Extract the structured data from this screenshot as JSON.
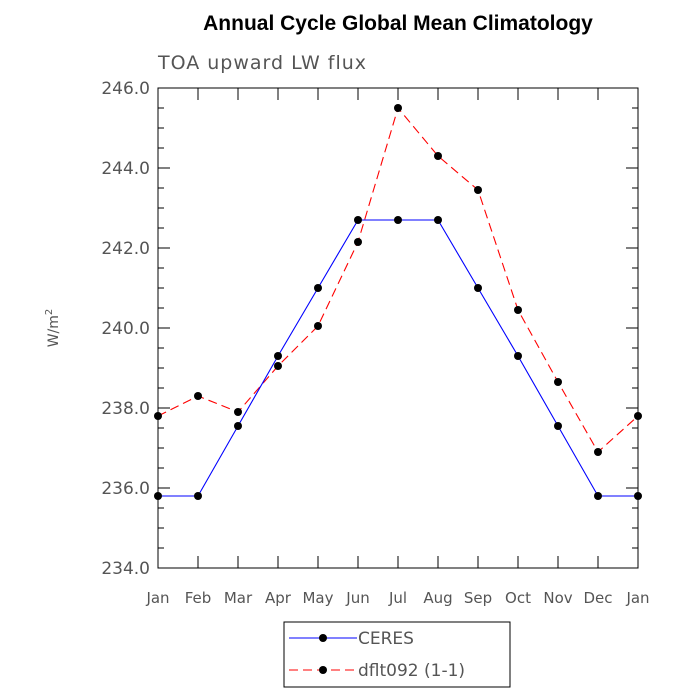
{
  "chart_data": {
    "type": "line",
    "title": "Annual Cycle Global Mean Climatology",
    "subtitle": "TOA upward LW flux",
    "ylabel_base": "W/m",
    "ylabel_sup": "2",
    "categories": [
      "Jan",
      "Feb",
      "Mar",
      "Apr",
      "May",
      "Jun",
      "Jul",
      "Aug",
      "Sep",
      "Oct",
      "Nov",
      "Dec",
      "Jan"
    ],
    "ylim": [
      234.0,
      246.0
    ],
    "yticks": [
      {
        "value": 234.0,
        "label": "234.0"
      },
      {
        "value": 236.0,
        "label": "236.0"
      },
      {
        "value": 238.0,
        "label": "238.0"
      },
      {
        "value": 240.0,
        "label": "240.0"
      },
      {
        "value": 242.0,
        "label": "242.0"
      },
      {
        "value": 244.0,
        "label": "244.0"
      },
      {
        "value": 246.0,
        "label": "246.0"
      }
    ],
    "yminor_step": 0.5,
    "legend_position": "bottom",
    "series": [
      {
        "name": "CERES",
        "color": "#0000ff",
        "dash": "solid",
        "values": [
          235.8,
          235.8,
          237.55,
          239.3,
          241.0,
          242.7,
          242.7,
          242.7,
          241.0,
          239.3,
          237.55,
          235.8,
          235.8
        ]
      },
      {
        "name": "dflt092 (1-1)",
        "color": "#ff0000",
        "dash": "dashed",
        "values": [
          237.8,
          238.3,
          237.9,
          239.05,
          240.05,
          242.15,
          245.5,
          244.3,
          243.45,
          240.45,
          238.65,
          236.9,
          237.8
        ]
      }
    ]
  }
}
